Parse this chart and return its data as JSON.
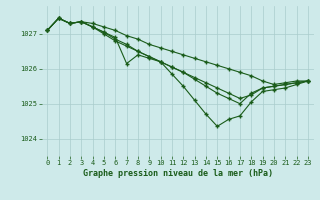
{
  "title": "Graphe pression niveau de la mer (hPa)",
  "bg_color": "#ceeaea",
  "grid_color": "#aacccc",
  "line_color": "#1a5c1a",
  "xlim": [
    -0.5,
    23.5
  ],
  "ylim": [
    1023.5,
    1027.8
  ],
  "yticks": [
    1024,
    1025,
    1026,
    1027
  ],
  "xticks": [
    0,
    1,
    2,
    3,
    4,
    5,
    6,
    7,
    8,
    9,
    10,
    11,
    12,
    13,
    14,
    15,
    16,
    17,
    18,
    19,
    20,
    21,
    22,
    23
  ],
  "series": [
    [
      1027.1,
      1027.45,
      1027.3,
      1027.35,
      1027.3,
      1027.2,
      1027.1,
      1026.95,
      1026.85,
      1026.7,
      1026.6,
      1026.5,
      1026.4,
      1026.3,
      1026.2,
      1026.1,
      1026.0,
      1025.9,
      1025.8,
      1025.65,
      1025.55,
      1025.6,
      1025.65,
      1025.65
    ],
    [
      1027.1,
      1027.45,
      1027.3,
      1027.35,
      1027.2,
      1027.05,
      1026.9,
      1026.15,
      1026.4,
      1026.3,
      1026.2,
      1026.05,
      1025.9,
      1025.7,
      1025.5,
      1025.3,
      1025.15,
      1025.0,
      1025.3,
      1025.45,
      1025.5,
      1025.55,
      1025.6,
      1025.65
    ],
    [
      1027.1,
      1027.45,
      1027.3,
      1027.35,
      1027.2,
      1027.05,
      1026.85,
      1026.7,
      1026.5,
      1026.35,
      1026.2,
      1025.85,
      1025.5,
      1025.1,
      1024.7,
      1024.35,
      1024.55,
      1024.65,
      1025.05,
      1025.35,
      1025.4,
      1025.45,
      1025.55,
      1025.65
    ],
    [
      1027.1,
      1027.45,
      1027.3,
      1027.35,
      1027.2,
      1027.0,
      1026.8,
      1026.65,
      1026.5,
      1026.35,
      1026.2,
      1026.05,
      1025.9,
      1025.75,
      1025.6,
      1025.45,
      1025.3,
      1025.15,
      1025.25,
      1025.45,
      1025.5,
      1025.55,
      1025.6,
      1025.65
    ]
  ]
}
